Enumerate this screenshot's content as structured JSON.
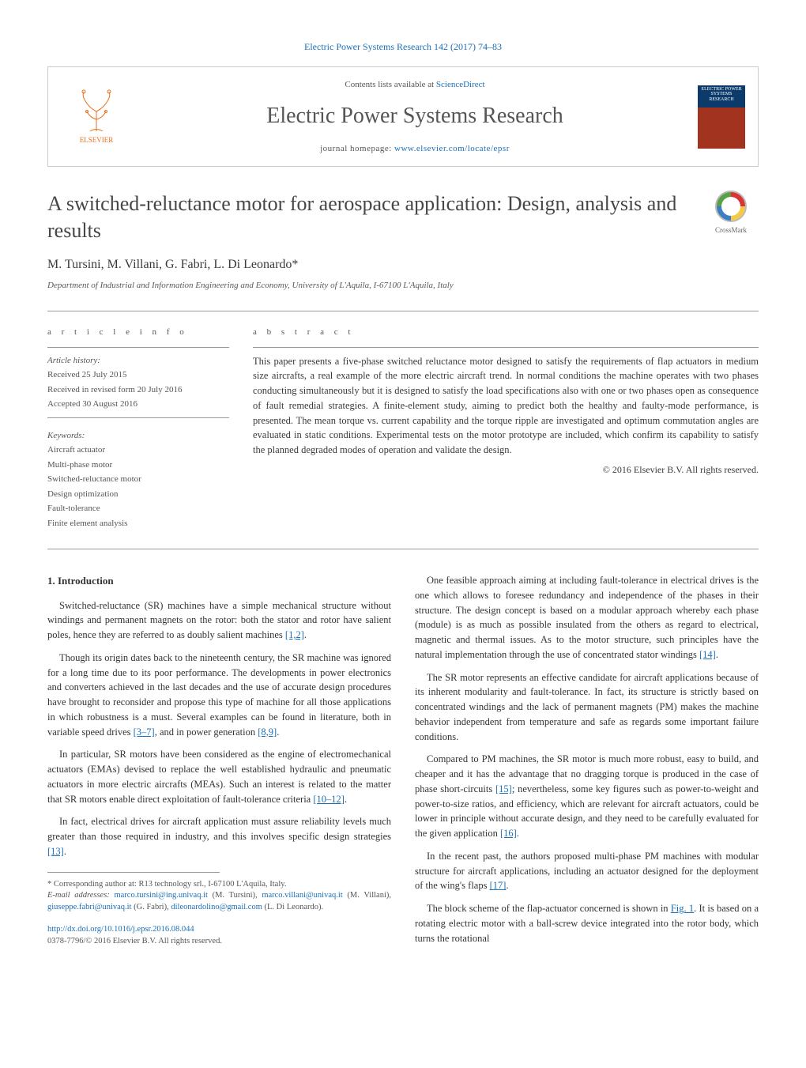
{
  "journal_link_text": "Electric Power Systems Research 142 (2017) 74–83",
  "header": {
    "contents_prefix": "Contents lists available at ",
    "contents_link": "ScienceDirect",
    "journal_name": "Electric Power Systems Research",
    "homepage_prefix": "journal homepage: ",
    "homepage_link": "www.elsevier.com/locate/epsr",
    "publisher": "ELSEVIER",
    "cover_label": "ELECTRIC POWER SYSTEMS RESEARCH"
  },
  "crossmark_label": "CrossMark",
  "title": "A switched-reluctance motor for aerospace application: Design, analysis and results",
  "authors": "M. Tursini, M. Villani, G. Fabri, L. Di Leonardo*",
  "affiliation": "Department of Industrial and Information Engineering and Economy, University of L'Aquila, I-67100 L'Aquila, Italy",
  "article_info_heading": "a r t i c l e   i n f o",
  "abstract_heading": "a b s t r a c t",
  "history": {
    "label": "Article history:",
    "received": "Received 25 July 2015",
    "revised": "Received in revised form 20 July 2016",
    "accepted": "Accepted 30 August 2016"
  },
  "keywords": {
    "label": "Keywords:",
    "items": [
      "Aircraft actuator",
      "Multi-phase motor",
      "Switched-reluctance motor",
      "Design optimization",
      "Fault-tolerance",
      "Finite element analysis"
    ]
  },
  "abstract_text": "This paper presents a five-phase switched reluctance motor designed to satisfy the requirements of flap actuators in medium size aircrafts, a real example of the more electric aircraft trend. In normal conditions the machine operates with two phases conducting simultaneously but it is designed to satisfy the load specifications also with one or two phases open as consequence of fault remedial strategies. A finite-element study, aiming to predict both the healthy and faulty-mode performance, is presented. The mean torque vs. current capability and the torque ripple are investigated and optimum commutation angles are evaluated in static conditions. Experimental tests on the motor prototype are included, which confirm its capability to satisfy the planned degraded modes of operation and validate the design.",
  "abstract_copyright": "© 2016 Elsevier B.V. All rights reserved.",
  "section1_heading": "1.  Introduction",
  "paragraphs_left": [
    "Switched-reluctance (SR) machines have a simple mechanical structure without windings and permanent magnets on the rotor: both the stator and rotor have salient poles, hence they are referred to as doubly salient machines [1,2].",
    "Though its origin dates back to the nineteenth century, the SR machine was ignored for a long time due to its poor performance. The developments in power electronics and converters achieved in the last decades and the use of accurate design procedures have brought to reconsider and propose this type of machine for all those applications in which robustness is a must. Several examples can be found in literature, both in variable speed drives [3–7], and in power generation [8,9].",
    "In particular, SR motors have been considered as the engine of electromechanical actuators (EMAs) devised to replace the well established hydraulic and pneumatic actuators in more electric aircrafts (MEAs). Such an interest is related to the matter that SR motors enable direct exploitation of fault-tolerance criteria [10–12].",
    "In fact, electrical drives for aircraft application must assure reliability levels much greater than those required in industry, and this involves specific design strategies [13]."
  ],
  "paragraphs_right": [
    "One feasible approach aiming at including fault-tolerance in electrical drives is the one which allows to foresee redundancy and independence of the phases in their structure. The design concept is based on a modular approach whereby each phase (module) is as much as possible insulated from the others as regard to electrical, magnetic and thermal issues. As to the motor structure, such principles have the natural implementation through the use of concentrated stator windings [14].",
    "The SR motor represents an effective candidate for aircraft applications because of its inherent modularity and fault-tolerance. In fact, its structure is strictly based on concentrated windings and the lack of permanent magnets (PM) makes the machine behavior independent from temperature and safe as regards some important failure conditions.",
    "Compared to PM machines, the SR motor is much more robust, easy to build, and cheaper and it has the advantage that no dragging torque is produced in the case of phase short-circuits [15]; nevertheless, some key figures such as power-to-weight and power-to-size ratios, and efficiency, which are relevant for aircraft actuators, could be lower in principle without accurate design, and they need to be carefully evaluated for the given application [16].",
    "In the recent past, the authors proposed multi-phase PM machines with modular structure for aircraft applications, including an actuator designed for the deployment of the wing's flaps [17].",
    "The block scheme of the flap-actuator concerned is shown in Fig. 1. It is based on a rotating electric motor with a ball-screw device integrated into the rotor body, which turns the rotational"
  ],
  "refs_map": {
    "[1,2]": "[1,2]",
    "[3–7]": "[3–7]",
    "[8,9]": "[8,9]",
    "[10–12]": "[10–12]",
    "[13]": "[13]",
    "[14]": "[14]",
    "[15]": "[15]",
    "[16]": "[16]",
    "[17]": "[17]",
    "Fig. 1": "Fig. 1"
  },
  "footnote": {
    "corresponding": "* Corresponding author at: R13 technology srl., I-67100 L'Aquila, Italy.",
    "email_label": "E-mail addresses: ",
    "emails": [
      {
        "addr": "marco.tursini@ing.univaq.it",
        "who": " (M. Tursini), "
      },
      {
        "addr": "marco.villani@univaq.it",
        "who": " (M. Villani), "
      },
      {
        "addr": "giuseppe.fabri@univaq.it",
        "who": " (G. Fabri), "
      },
      {
        "addr": "dileonardolino@gmail.com",
        "who": " (L. Di Leonardo)."
      }
    ]
  },
  "doi": "http://dx.doi.org/10.1016/j.epsr.2016.08.044",
  "issn_copyright": "0378-7796/© 2016 Elsevier B.V. All rights reserved.",
  "colors": {
    "link": "#1a6fb8",
    "text": "#333333",
    "meta": "#555555",
    "elsevier": "#e9701f",
    "rule": "#999999"
  }
}
